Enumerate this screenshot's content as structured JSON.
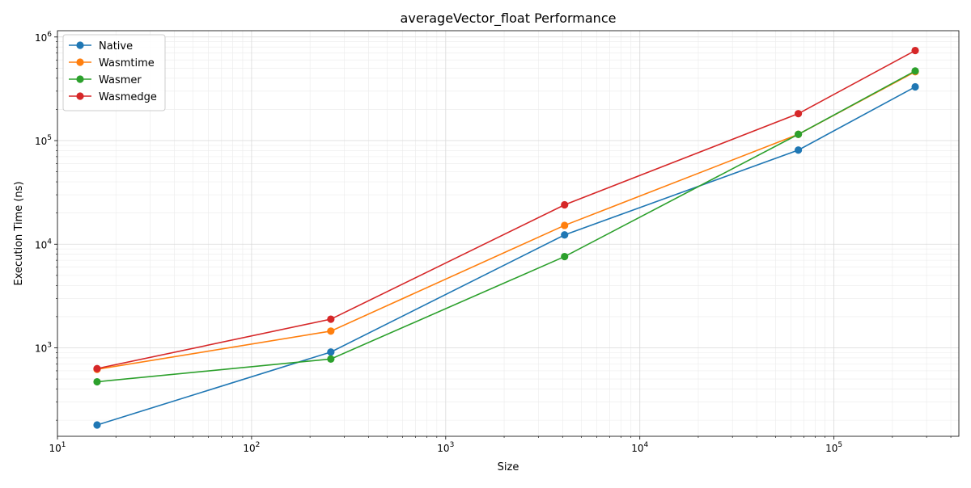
{
  "chart_data": {
    "type": "line",
    "title": "averageVector_float Performance",
    "xlabel": "Size",
    "ylabel": "Execution Time (ns)",
    "x_scale": "log",
    "y_scale": "log",
    "xlim": [
      10,
      440000
    ],
    "ylim": [
      140,
      1150000
    ],
    "grid": true,
    "legend_position": "top-left",
    "x_ticks": [
      {
        "value": 10,
        "base": "10",
        "exp": "1"
      },
      {
        "value": 100,
        "base": "10",
        "exp": "2"
      },
      {
        "value": 1000,
        "base": "10",
        "exp": "3"
      },
      {
        "value": 10000,
        "base": "10",
        "exp": "4"
      },
      {
        "value": 100000,
        "base": "10",
        "exp": "5"
      }
    ],
    "y_ticks": [
      {
        "value": 1000,
        "base": "10",
        "exp": "3"
      },
      {
        "value": 10000,
        "base": "10",
        "exp": "4"
      },
      {
        "value": 100000,
        "base": "10",
        "exp": "5"
      },
      {
        "value": 1000000,
        "base": "10",
        "exp": "6"
      }
    ],
    "x": [
      16,
      256,
      4096,
      65536,
      262144
    ],
    "series": [
      {
        "name": "Native",
        "color": "#1f77b4",
        "values": [
          180,
          910,
          12300,
          81000,
          330000
        ]
      },
      {
        "name": "Wasmtime",
        "color": "#ff7f0e",
        "values": [
          620,
          1450,
          15200,
          115000,
          462000
        ]
      },
      {
        "name": "Wasmer",
        "color": "#2ca02c",
        "values": [
          470,
          780,
          7600,
          115000,
          470000
        ]
      },
      {
        "name": "Wasmedge",
        "color": "#d62728",
        "values": [
          630,
          1890,
          24000,
          182000,
          740000
        ]
      }
    ]
  }
}
